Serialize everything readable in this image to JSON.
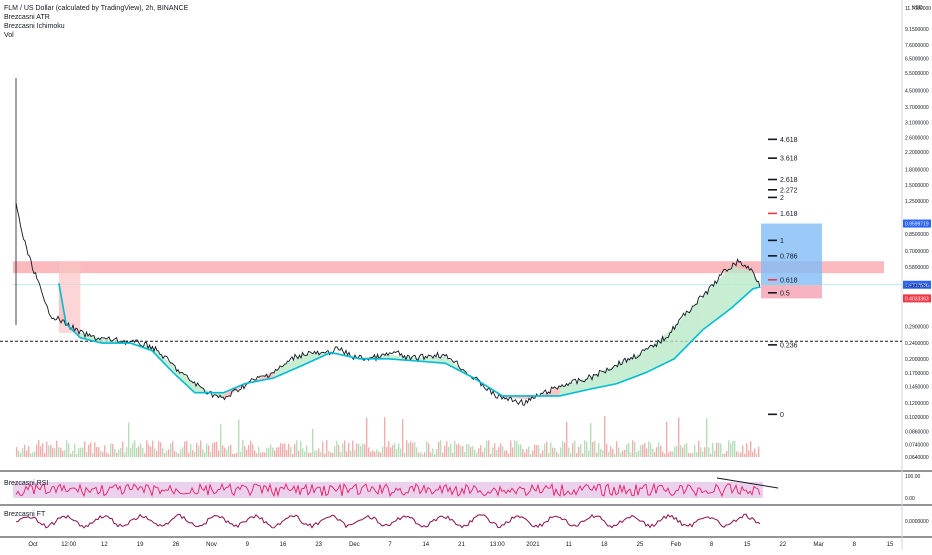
{
  "header": {
    "symbol_line": "FLM / US Dollar (calculated by TradingView), 2h, BINANCE",
    "indicators": [
      "Brezcasni ATR",
      "Brezcasni Ichimoku",
      "Vol"
    ]
  },
  "chart_data": {
    "type": "line",
    "currency": "USD",
    "y_scale": "log",
    "ylim": [
      0.064,
      11.7
    ],
    "price_ticks": [
      "11.7000000",
      "9.1500000",
      "7.6000000",
      "6.5000000",
      "5.5000000",
      "4.5000000",
      "3.7000000",
      "3.1000000",
      "2.6000000",
      "2.2000000",
      "1.8000000",
      "1.5000000",
      "1.2500000",
      "0.8500000",
      "0.7000000",
      "0.5800000",
      "0.4800000",
      "0.4000000",
      "0.2900000",
      "0.2400000",
      "0.2000000",
      "0.1700000",
      "0.1450000",
      "0.1200000",
      "0.1020000",
      "0.0860000",
      "0.0740000",
      "0.0640000"
    ],
    "x_labels": [
      "Oct",
      "12:00",
      "12",
      "19",
      "26",
      "Nov",
      "9",
      "16",
      "23",
      "Dec",
      "7",
      "14",
      "21",
      "13:00",
      "2021",
      "11",
      "18",
      "25",
      "Feb",
      "8",
      "15",
      "22",
      "Mar",
      "8",
      "15"
    ],
    "fib_levels": [
      {
        "label": "4.618",
        "value": 2.55
      },
      {
        "label": "3.618",
        "value": 2.05
      },
      {
        "label": "2.618",
        "value": 1.6
      },
      {
        "label": "2.272",
        "value": 1.42
      },
      {
        "label": "2",
        "value": 1.3
      },
      {
        "label": "1.618",
        "value": 1.08
      },
      {
        "label": "1",
        "value": 0.79
      },
      {
        "label": "0.786",
        "value": 0.66
      },
      {
        "label": "0.618",
        "value": 0.5
      },
      {
        "label": "0.5",
        "value": 0.43
      },
      {
        "label": "0.236",
        "value": 0.235
      },
      {
        "label": "0",
        "value": 0.105
      }
    ],
    "price_tags": [
      {
        "text": "0.9599719",
        "color": "#2962ff"
      },
      {
        "text": "0.4717586",
        "color": "#2962ff"
      },
      {
        "text": "0.4665767",
        "color": "#131722"
      },
      {
        "text": "0.4033363",
        "color": "#f23645"
      }
    ],
    "resistance_zone": {
      "low": 0.54,
      "high": 0.62
    },
    "reference_line": 0.245,
    "close_line": 0.472,
    "price_series": [
      {
        "t": 0,
        "v": 1.2
      },
      {
        "t": 1,
        "v": 0.82
      },
      {
        "t": 2,
        "v": 0.62
      },
      {
        "t": 3,
        "v": 0.5
      },
      {
        "t": 4,
        "v": 0.38
      },
      {
        "t": 5,
        "v": 0.33
      },
      {
        "t": 7,
        "v": 0.3
      },
      {
        "t": 9,
        "v": 0.27
      },
      {
        "t": 11,
        "v": 0.255
      },
      {
        "t": 13,
        "v": 0.25
      },
      {
        "t": 15,
        "v": 0.245
      },
      {
        "t": 17,
        "v": 0.24
      },
      {
        "t": 19,
        "v": 0.23
      },
      {
        "t": 21,
        "v": 0.2
      },
      {
        "t": 23,
        "v": 0.17
      },
      {
        "t": 25,
        "v": 0.15
      },
      {
        "t": 27,
        "v": 0.135
      },
      {
        "t": 29,
        "v": 0.125
      },
      {
        "t": 31,
        "v": 0.14
      },
      {
        "t": 33,
        "v": 0.155
      },
      {
        "t": 35,
        "v": 0.165
      },
      {
        "t": 37,
        "v": 0.18
      },
      {
        "t": 39,
        "v": 0.205
      },
      {
        "t": 41,
        "v": 0.215
      },
      {
        "t": 43,
        "v": 0.21
      },
      {
        "t": 45,
        "v": 0.225
      },
      {
        "t": 47,
        "v": 0.205
      },
      {
        "t": 49,
        "v": 0.2
      },
      {
        "t": 51,
        "v": 0.205
      },
      {
        "t": 53,
        "v": 0.215
      },
      {
        "t": 55,
        "v": 0.2
      },
      {
        "t": 57,
        "v": 0.205
      },
      {
        "t": 59,
        "v": 0.21
      },
      {
        "t": 61,
        "v": 0.2
      },
      {
        "t": 63,
        "v": 0.17
      },
      {
        "t": 65,
        "v": 0.15
      },
      {
        "t": 67,
        "v": 0.13
      },
      {
        "t": 69,
        "v": 0.125
      },
      {
        "t": 71,
        "v": 0.12
      },
      {
        "t": 73,
        "v": 0.13
      },
      {
        "t": 75,
        "v": 0.14
      },
      {
        "t": 77,
        "v": 0.15
      },
      {
        "t": 79,
        "v": 0.155
      },
      {
        "t": 81,
        "v": 0.165
      },
      {
        "t": 83,
        "v": 0.18
      },
      {
        "t": 85,
        "v": 0.195
      },
      {
        "t": 87,
        "v": 0.21
      },
      {
        "t": 89,
        "v": 0.23
      },
      {
        "t": 91,
        "v": 0.26
      },
      {
        "t": 93,
        "v": 0.32
      },
      {
        "t": 95,
        "v": 0.38
      },
      {
        "t": 97,
        "v": 0.45
      },
      {
        "t": 99,
        "v": 0.55
      },
      {
        "t": 101,
        "v": 0.62
      },
      {
        "t": 103,
        "v": 0.55
      },
      {
        "t": 104,
        "v": 0.47
      }
    ],
    "baseline_series": [
      {
        "t": 6,
        "v": 0.48
      },
      {
        "t": 7,
        "v": 0.3
      },
      {
        "t": 9,
        "v": 0.255
      },
      {
        "t": 12,
        "v": 0.24
      },
      {
        "t": 16,
        "v": 0.24
      },
      {
        "t": 19,
        "v": 0.22
      },
      {
        "t": 22,
        "v": 0.17
      },
      {
        "t": 25,
        "v": 0.135
      },
      {
        "t": 29,
        "v": 0.135
      },
      {
        "t": 32,
        "v": 0.15
      },
      {
        "t": 36,
        "v": 0.16
      },
      {
        "t": 40,
        "v": 0.185
      },
      {
        "t": 44,
        "v": 0.215
      },
      {
        "t": 48,
        "v": 0.2
      },
      {
        "t": 52,
        "v": 0.2
      },
      {
        "t": 56,
        "v": 0.195
      },
      {
        "t": 60,
        "v": 0.19
      },
      {
        "t": 64,
        "v": 0.16
      },
      {
        "t": 68,
        "v": 0.13
      },
      {
        "t": 72,
        "v": 0.13
      },
      {
        "t": 76,
        "v": 0.13
      },
      {
        "t": 80,
        "v": 0.14
      },
      {
        "t": 84,
        "v": 0.15
      },
      {
        "t": 88,
        "v": 0.17
      },
      {
        "t": 92,
        "v": 0.2
      },
      {
        "t": 96,
        "v": 0.28
      },
      {
        "t": 100,
        "v": 0.36
      },
      {
        "t": 103,
        "v": 0.45
      },
      {
        "t": 104,
        "v": 0.46
      }
    ],
    "rsi": {
      "label": "Brezcasni RSI",
      "ticks": [
        "100.00",
        "0.00"
      ]
    },
    "ft": {
      "label": "Brezcasni FT",
      "ticks": [
        "0.0000000"
      ]
    }
  }
}
